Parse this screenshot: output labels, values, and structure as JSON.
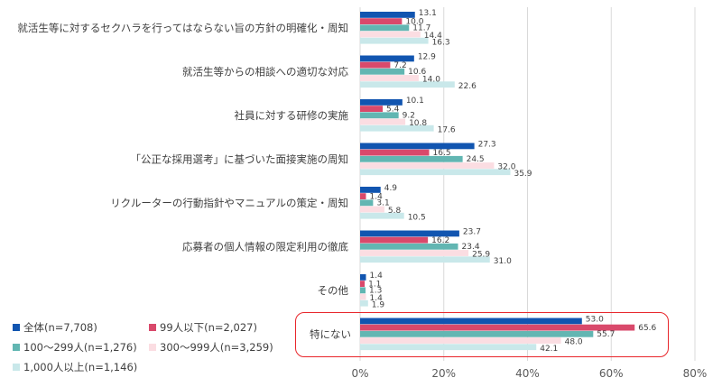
{
  "chart_data": {
    "type": "bar",
    "orientation": "horizontal",
    "title": "",
    "xlabel": "",
    "ylabel": "",
    "xlim": [
      0,
      80
    ],
    "x_ticks": [
      "0%",
      "20%",
      "40%",
      "60%",
      "80%"
    ],
    "x_tick_values": [
      0,
      20,
      40,
      60,
      80
    ],
    "grid": true,
    "legend_position": "bottom-left",
    "categories": [
      "就活生等に対するセクハラを行ってはならない旨の方針の明確化・周知",
      "就活生等からの相談への適切な対応",
      "社員に対する研修の実施",
      "「公正な採用選考」に基づいた面接実施の周知",
      "リクルーターの行動指針やマニュアルの策定・周知",
      "応募者の個人情報の限定利用の徹底",
      "その他",
      "特にない"
    ],
    "series": [
      {
        "name": "全体(n=7,708)",
        "color": "#1155b0",
        "values": [
          13.1,
          12.9,
          10.1,
          27.3,
          4.9,
          23.7,
          1.4,
          53.0
        ],
        "labels": [
          "13.1",
          "12.9",
          "10.1",
          "27.3",
          "4.9",
          "23.7",
          "1.4",
          "53.0"
        ]
      },
      {
        "name": "99人以下(n=2,027)",
        "color": "#d9496b",
        "values": [
          10.0,
          7.2,
          5.4,
          16.5,
          1.4,
          16.2,
          1.1,
          65.6
        ],
        "labels": [
          "10.0",
          "7.2",
          "5.4",
          "16.5",
          "1.4",
          "16.2",
          "1.1",
          "65.6"
        ]
      },
      {
        "name": "100～299人(n=1,276)",
        "color": "#62b6b2",
        "values": [
          11.7,
          10.6,
          9.2,
          24.5,
          3.1,
          23.4,
          1.3,
          55.7
        ],
        "labels": [
          "11.7",
          "10.6",
          "9.2",
          "24.5",
          "3.1",
          "23.4",
          "1.3",
          "55.7"
        ]
      },
      {
        "name": "300～999人(n=3,259)",
        "color": "#fbdde2",
        "values": [
          14.4,
          14.0,
          10.8,
          32.0,
          5.8,
          25.9,
          1.4,
          48.0
        ],
        "labels": [
          "14.4",
          "14.0",
          "10.8",
          "32.0",
          "5.8",
          "25.9",
          "1.4",
          "48.0"
        ]
      },
      {
        "name": "1,000人以上(n=1,146)",
        "color": "#c9e8ea",
        "values": [
          16.3,
          22.6,
          17.6,
          35.9,
          10.5,
          31.0,
          1.9,
          42.1
        ],
        "labels": [
          "16.3",
          "22.6",
          "17.6",
          "35.9",
          "10.5",
          "31.0",
          "1.9",
          "42.1"
        ]
      }
    ],
    "highlighted_category": "特にない",
    "highlight_color": "#e8262b",
    "gridline_color": "#d9d9d9"
  }
}
